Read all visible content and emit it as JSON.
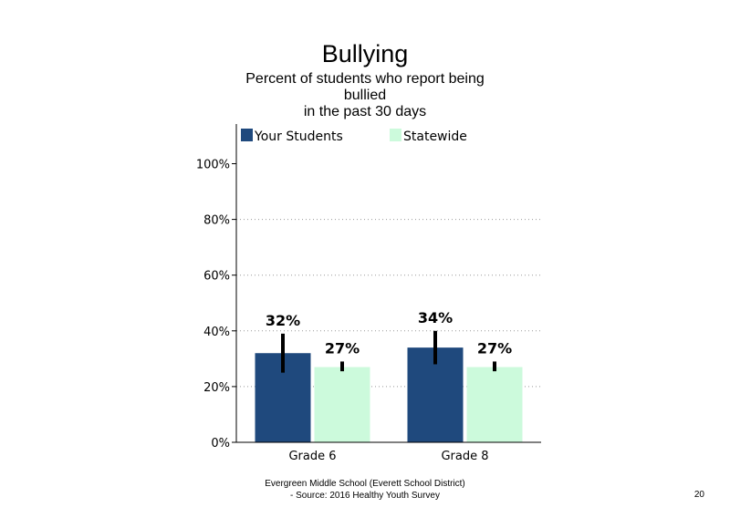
{
  "chart_data": {
    "type": "bar",
    "title": "Bullying",
    "subtitle_lines": [
      "Percent of students who report being",
      "bullied",
      "in the past 30 days"
    ],
    "categories": [
      "Grade 6",
      "Grade 8"
    ],
    "series": [
      {
        "name": "Your Students",
        "values": [
          32,
          34
        ],
        "labels": [
          "32%",
          "34%"
        ],
        "error_low": [
          25,
          28
        ],
        "error_high": [
          39,
          40
        ],
        "color": "#1f497d"
      },
      {
        "name": "Statewide",
        "values": [
          27,
          27
        ],
        "labels": [
          "27%",
          "27%"
        ],
        "error_low": [
          25.5,
          25.5
        ],
        "error_high": [
          29,
          29
        ],
        "color": "#ccfadc"
      }
    ],
    "ylim": [
      0,
      110
    ],
    "yticks": [
      0,
      20,
      40,
      60,
      80,
      100
    ],
    "ytick_labels": [
      "0%",
      "20%",
      "40%",
      "60%",
      "80%",
      "100%"
    ],
    "grid": true,
    "legend_position": "top"
  },
  "footer": {
    "line1": "Evergreen Middle School (Everett School District)",
    "line2": "- Source: 2016 Healthy Youth Survey"
  },
  "page_number": "20"
}
